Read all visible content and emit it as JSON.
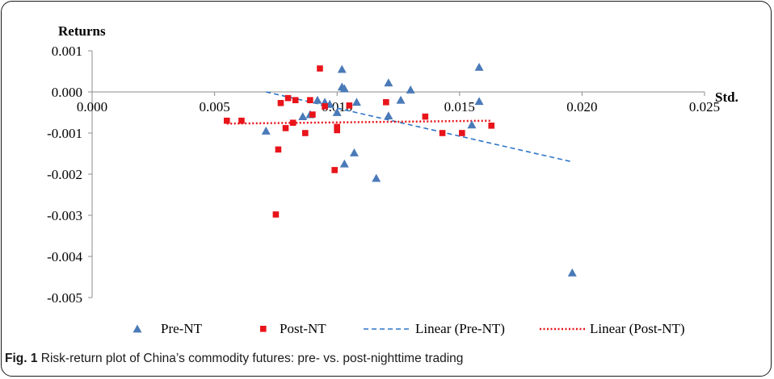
{
  "caption": {
    "label": "Fig. 1",
    "text": "Risk-return plot of China’s commodity futures: pre- vs. post-nighttime trading"
  },
  "chart_data": {
    "type": "scatter",
    "title": "",
    "xlabel": "Std.",
    "ylabel": "Returns",
    "xlim": [
      0.0,
      0.025
    ],
    "ylim": [
      -0.005,
      0.001
    ],
    "xticks": [
      0.0,
      0.005,
      0.01,
      0.015,
      0.02,
      0.025
    ],
    "xtick_labels": [
      "0.000",
      "0.005",
      "0.010",
      "0.015",
      "0.020",
      "0.025"
    ],
    "yticks": [
      0.001,
      0.0,
      -0.001,
      -0.002,
      -0.003,
      -0.004,
      -0.005
    ],
    "ytick_labels": [
      "0.001",
      "0.000",
      "-0.001",
      "-0.002",
      "-0.003",
      "-0.004",
      "-0.005"
    ],
    "grid": false,
    "legend_position": "bottom",
    "series": [
      {
        "name": "Pre-NT",
        "marker": "triangle",
        "color": "#4a7ab8",
        "points": [
          [
            0.0071,
            -0.00095
          ],
          [
            0.0086,
            -0.0006
          ],
          [
            0.0089,
            -0.00055
          ],
          [
            0.0092,
            -0.0002
          ],
          [
            0.0095,
            -0.00025
          ],
          [
            0.0097,
            -0.0003
          ],
          [
            0.01,
            -0.0005
          ],
          [
            0.0102,
            0.00055
          ],
          [
            0.0102,
            0.00012
          ],
          [
            0.0103,
            8e-05
          ],
          [
            0.0103,
            -0.00175
          ],
          [
            0.0107,
            -0.00148
          ],
          [
            0.0108,
            -0.00025
          ],
          [
            0.0116,
            -0.0021
          ],
          [
            0.0121,
            0.00022
          ],
          [
            0.0121,
            -0.00058
          ],
          [
            0.0126,
            -0.0002
          ],
          [
            0.013,
            5e-05
          ],
          [
            0.0155,
            -0.0008
          ],
          [
            0.0158,
            0.0006
          ],
          [
            0.0158,
            -0.00023
          ],
          [
            0.0196,
            -0.0044
          ]
        ]
      },
      {
        "name": "Post-NT",
        "marker": "square",
        "color": "#e8141a",
        "points": [
          [
            0.0055,
            -0.0007
          ],
          [
            0.0061,
            -0.0007
          ],
          [
            0.0076,
            -0.0014
          ],
          [
            0.0075,
            -0.00298
          ],
          [
            0.0077,
            -0.00027
          ],
          [
            0.0079,
            -0.00088
          ],
          [
            0.008,
            -0.00015
          ],
          [
            0.0082,
            -0.00075
          ],
          [
            0.0083,
            -0.0002
          ],
          [
            0.0087,
            -0.001
          ],
          [
            0.0089,
            -0.0002
          ],
          [
            0.009,
            -0.00055
          ],
          [
            0.0093,
            0.00057
          ],
          [
            0.0095,
            -0.00035
          ],
          [
            0.0099,
            -0.0019
          ],
          [
            0.01,
            -0.00085
          ],
          [
            0.01,
            -0.00093
          ],
          [
            0.0105,
            -0.00033
          ],
          [
            0.012,
            -0.00025
          ],
          [
            0.0136,
            -0.0006
          ],
          [
            0.0143,
            -0.001
          ],
          [
            0.0151,
            -0.001
          ],
          [
            0.0163,
            -0.00082
          ]
        ]
      }
    ],
    "trendlines": [
      {
        "name": "Linear (Pre-NT)",
        "color": "#2e75c8",
        "dash": "dashed",
        "x": [
          0.0071,
          0.0196
        ],
        "y": [
          0.0,
          -0.0017
        ]
      },
      {
        "name": "Linear (Post-NT)",
        "color": "#e8141a",
        "dash": "dotted",
        "x": [
          0.0055,
          0.0163
        ],
        "y": [
          -0.00077,
          -0.0007
        ]
      }
    ]
  }
}
